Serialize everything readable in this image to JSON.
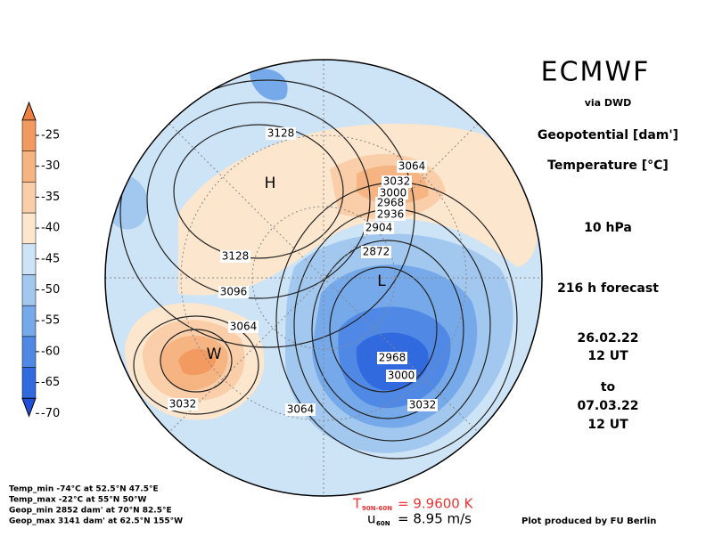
{
  "header": {
    "title": "ECMWF",
    "source": "via DWD",
    "variables": [
      "Geopotential [dam']",
      "Temperature [°C]"
    ],
    "level": "10 hPa",
    "forecast": "216 h forecast",
    "init": [
      "26.02.22",
      "12 UT"
    ],
    "to": "to",
    "valid": [
      "07.03.22",
      "12 UT"
    ]
  },
  "colorbar": {
    "labels": [
      -25,
      -30,
      -35,
      -40,
      -45,
      -50,
      -55,
      -60,
      -65,
      -70
    ],
    "colors": [
      "#ee7f3e",
      "#f29a5f",
      "#f6b483",
      "#f9cea8",
      "#fce6cd",
      "#cde3f6",
      "#a2c8f0",
      "#76a9ea",
      "#5089e5",
      "#3169df",
      "#1f4fd6"
    ]
  },
  "contour_labels": [
    "3128",
    "3064",
    "3032",
    "3000",
    "2968",
    "2936",
    "2904",
    "2872",
    "3128",
    "3096",
    "3064",
    "3032",
    "2968",
    "3000",
    "3064",
    "3032"
  ],
  "markers": [
    "H",
    "L",
    "W"
  ],
  "stats": [
    "Temp_min -74°C at 52.5°N 47.5°E",
    "Temp_max -22°C at 55°N 50°W",
    "Geop_min 2852 dam' at 70°N 82.5°E",
    "Geop_max 3141 dam' at 62.5°N 155°W"
  ],
  "footer": {
    "t_symbol": "T",
    "t_sub": "90N-60N",
    "t_value": "= 9.9600 K",
    "u_symbol": "u",
    "u_sub": "60N",
    "u_value": "= 8.95 m/s",
    "credit": "Plot produced by FU Berlin"
  }
}
